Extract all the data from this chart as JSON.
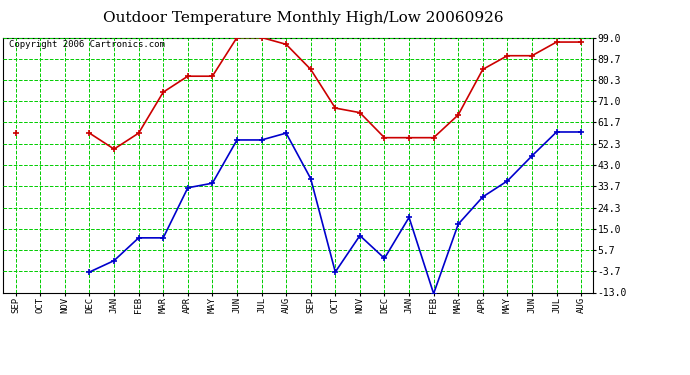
{
  "title": "Outdoor Temperature Monthly High/Low 20060926",
  "copyright": "Copyright 2006 Cartronics.com",
  "x_labels": [
    "SEP",
    "OCT",
    "NOV",
    "DEC",
    "JAN",
    "FEB",
    "MAR",
    "APR",
    "MAY",
    "JUN",
    "JUL",
    "AUG",
    "SEP",
    "OCT",
    "NOV",
    "DEC",
    "JAN",
    "FEB",
    "MAR",
    "APR",
    "MAY",
    "JUN",
    "JUL",
    "AUG"
  ],
  "high_values": [
    57.0,
    null,
    null,
    57.0,
    50.0,
    57.0,
    75.0,
    82.0,
    82.0,
    99.0,
    99.0,
    96.0,
    85.0,
    68.0,
    66.0,
    55.0,
    55.0,
    55.0,
    65.0,
    85.0,
    91.0,
    91.0,
    97.0,
    97.0
  ],
  "low_values": [
    null,
    null,
    null,
    -4.0,
    1.0,
    11.0,
    11.0,
    33.0,
    35.0,
    54.0,
    54.0,
    57.0,
    37.0,
    -4.0,
    12.0,
    2.0,
    20.0,
    -13.5,
    17.0,
    29.0,
    36.0,
    47.0,
    57.5,
    57.5
  ],
  "y_ticks": [
    -13.0,
    -3.7,
    5.7,
    15.0,
    24.3,
    33.7,
    43.0,
    52.3,
    61.7,
    71.0,
    80.3,
    89.7,
    99.0
  ],
  "ymin": -13.0,
  "ymax": 99.0,
  "high_color": "#cc0000",
  "low_color": "#0000cc",
  "bg_color": "#ffffff",
  "plot_bg": "#ffffff",
  "grid_color": "#00cc00",
  "title_fontsize": 11,
  "copyright_fontsize": 6.5
}
